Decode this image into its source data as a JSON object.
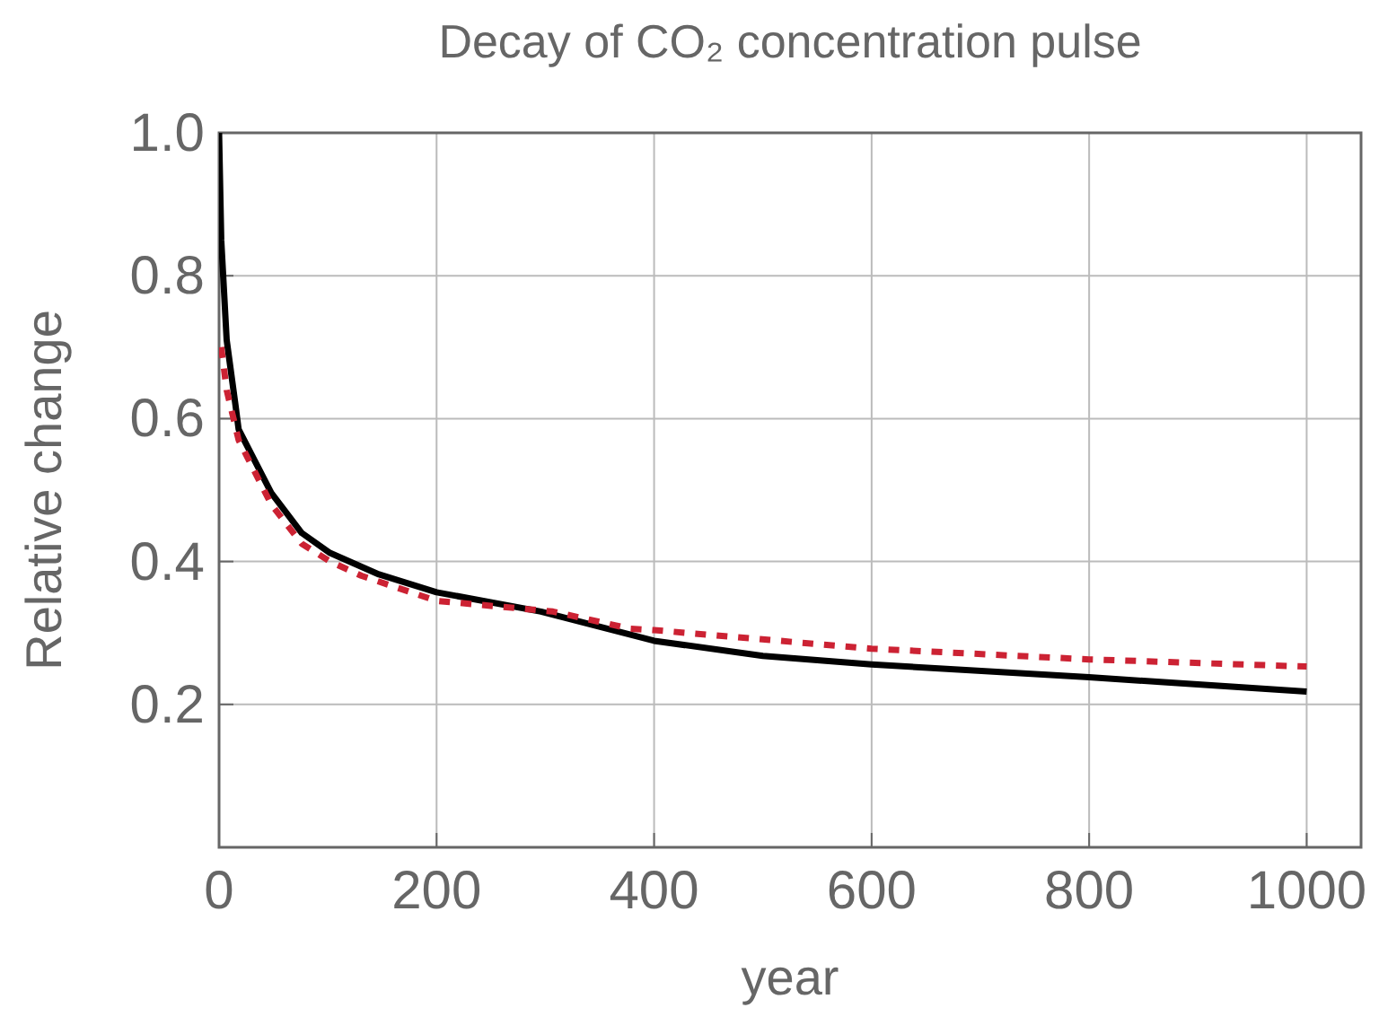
{
  "chart_data": {
    "type": "line",
    "title": "Decay of CO₂ concentration pulse",
    "xlabel": "year",
    "ylabel": "Relative change",
    "xlim": [
      0,
      1050
    ],
    "ylim": [
      0,
      1
    ],
    "xticks": [
      0,
      200,
      400,
      600,
      800,
      1000
    ],
    "yticks": [
      {
        "value": 0.2,
        "label": "0.2"
      },
      {
        "value": 0.4,
        "label": "0.4"
      },
      {
        "value": 0.6,
        "label": "0.6"
      },
      {
        "value": 0.8,
        "label": "0.8"
      },
      {
        "value": 1,
        "label": "1.0"
      }
    ],
    "grid": true,
    "marker": "none",
    "series": [
      {
        "color": "#000000",
        "line_style": "solid",
        "x": [
          0,
          2,
          7,
          15,
          18,
          48,
          76,
          102,
          147,
          200,
          296,
          400,
          500,
          600,
          800,
          1000
        ],
        "values": [
          1,
          0.85,
          0.71,
          0.62,
          0.585,
          0.496,
          0.44,
          0.412,
          0.382,
          0.357,
          0.33,
          0.289,
          0.268,
          0.256,
          0.238,
          0.218
        ]
      },
      {
        "color": "#cc2233",
        "line_style": "dashed",
        "x": [
          2,
          7,
          18,
          48,
          76,
          102,
          131,
          200,
          307,
          378,
          400,
          600,
          800,
          1000
        ],
        "values": [
          0.7,
          0.64,
          0.57,
          0.48,
          0.425,
          0.4,
          0.38,
          0.345,
          0.33,
          0.306,
          0.304,
          0.278,
          0.263,
          0.253
        ]
      }
    ]
  }
}
